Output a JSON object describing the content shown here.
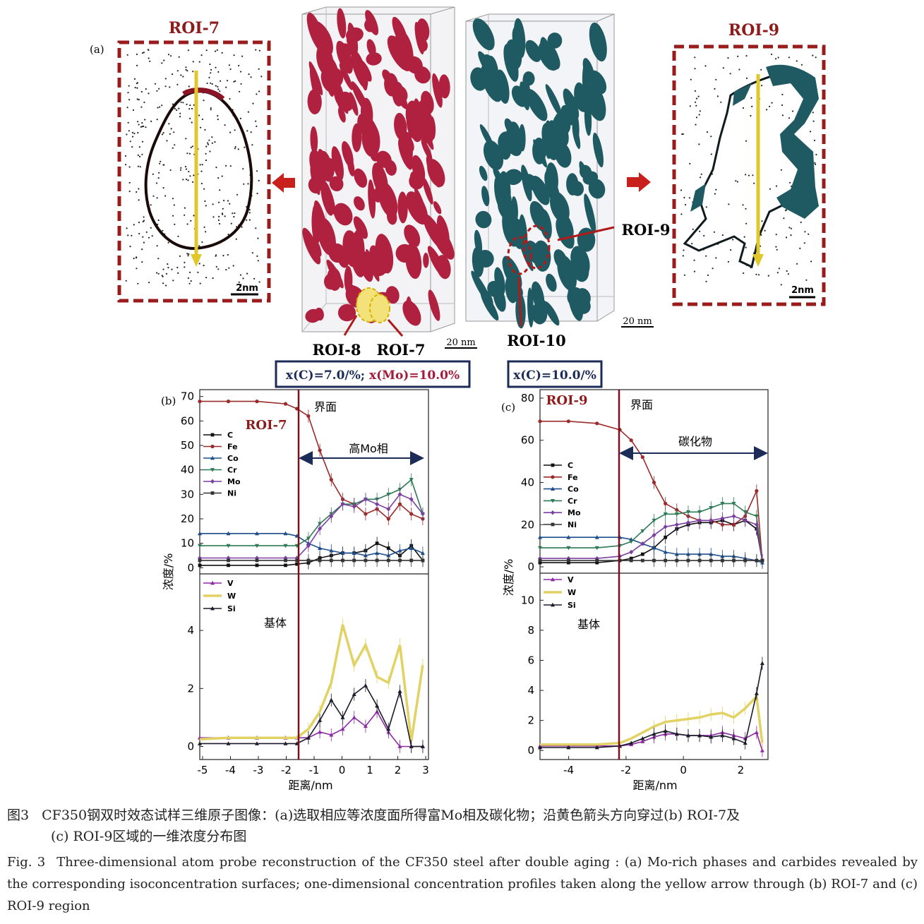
{
  "panel_a": {
    "label": "(a)",
    "roi7_title": "ROI-7",
    "roi9_title": "ROI-9",
    "scale_2nm_left": "2nm",
    "scale_2nm_right": "2nm",
    "scale_20nm_left": "20 nm",
    "scale_20nm_right": "20 nm",
    "roi8_label": "ROI-8",
    "roi7_label": "ROI-7",
    "roi10_label": "ROI-10",
    "roi9_label": "ROI-9",
    "iso_left_c": "x(C)=7.0/%; ",
    "iso_left_mo": "x(Mo)=10.0%",
    "iso_right": "x(C)=10.0/%",
    "colors": {
      "mo_phase": "#b0203f",
      "carbide": "#1f5a62",
      "box_red": "#9a1b1b",
      "arrow_yellow": "#e0c72a"
    }
  },
  "panel_b": {
    "label": "(b)",
    "roi": "ROI-7",
    "interface_label": "界面",
    "region_label": "高Mo相",
    "matrix_label": "基体",
    "ylabel": "浓度/%",
    "xlabel": "距离/nm",
    "upper_yticks": [
      "70",
      "60",
      "50",
      "40",
      "30",
      "20",
      "10",
      "0"
    ],
    "lower_yticks": [
      "4",
      "2",
      "0"
    ],
    "xticks": [
      "-5",
      "-4",
      "-3",
      "-2",
      "-1",
      "0",
      "1",
      "2",
      "3"
    ],
    "legend_upper": [
      "C",
      "Fe",
      "Co",
      "Cr",
      "Mo",
      "Ni"
    ],
    "legend_lower": [
      "V",
      "W",
      "Si"
    ]
  },
  "panel_c": {
    "label": "(c)",
    "roi": "ROI-9",
    "interface_label": "界面",
    "region_label": "碳化物",
    "matrix_label": "基体",
    "ylabel": "浓度/%",
    "xlabel": "距离/nm",
    "upper_yticks": [
      "80",
      "60",
      "40",
      "20",
      "0"
    ],
    "lower_yticks": [
      "10",
      "8",
      "6",
      "4",
      "2",
      "0"
    ],
    "xticks": [
      "-4",
      "-2",
      "0",
      "2"
    ],
    "legend_upper": [
      "C",
      "Fe",
      "Co",
      "Cr",
      "Mo",
      "Ni"
    ],
    "legend_lower": [
      "V",
      "W",
      "Si"
    ]
  },
  "chart_data": [
    {
      "type": "line",
      "title": "ROI-7",
      "xlabel": "距离/nm",
      "ylabel": "浓度/%",
      "xlim": [
        -5,
        3
      ],
      "ylim": [
        0,
        70
      ],
      "x": [
        -5,
        -4,
        -3,
        -2,
        -1.6,
        -1.2,
        -0.8,
        -0.4,
        0,
        0.4,
        0.8,
        1.2,
        1.6,
        2,
        2.4,
        2.8
      ],
      "series": [
        {
          "name": "C",
          "values": [
            1,
            1,
            1,
            1,
            1.5,
            2,
            4,
            5,
            6,
            6,
            7,
            10,
            8,
            5,
            9,
            3
          ]
        },
        {
          "name": "Fe",
          "values": [
            68,
            68,
            68,
            67,
            65,
            62,
            48,
            36,
            28,
            26,
            22,
            24,
            20,
            26,
            22,
            20
          ]
        },
        {
          "name": "Co",
          "values": [
            14,
            14,
            14,
            14,
            13,
            10,
            8,
            7,
            6,
            6,
            5,
            6,
            5,
            7,
            8,
            6
          ]
        },
        {
          "name": "Cr",
          "values": [
            9,
            9,
            9,
            9,
            9,
            12,
            18,
            22,
            26,
            26,
            28,
            28,
            30,
            32,
            36,
            22
          ]
        },
        {
          "name": "Mo",
          "values": [
            4,
            4,
            4,
            4,
            4,
            9,
            16,
            21,
            26,
            25,
            28,
            26,
            24,
            30,
            28,
            22
          ]
        },
        {
          "name": "Ni",
          "values": [
            3,
            3,
            3,
            3,
            3,
            3,
            3,
            3,
            3,
            3,
            3,
            3,
            3,
            3,
            3,
            3
          ]
        }
      ]
    },
    {
      "type": "line",
      "title": "",
      "xlabel": "距离/nm",
      "ylabel": "浓度/%",
      "xlim": [
        -5,
        3
      ],
      "ylim": [
        0,
        5.5
      ],
      "x": [
        -5,
        -4,
        -3,
        -2,
        -1.6,
        -1.2,
        -0.8,
        -0.4,
        0,
        0.4,
        0.8,
        1.2,
        1.6,
        2,
        2.4,
        2.8
      ],
      "series": [
        {
          "name": "V",
          "values": [
            0.3,
            0.3,
            0.3,
            0.3,
            0.3,
            0.3,
            0.5,
            0.4,
            0.6,
            1,
            0.7,
            1.2,
            0.5,
            0,
            0,
            0
          ]
        },
        {
          "name": "W",
          "values": [
            0.25,
            0.3,
            0.3,
            0.3,
            0.3,
            0.6,
            1.2,
            2.2,
            4.2,
            2.8,
            3.5,
            2.4,
            2.2,
            3.5,
            0.2,
            2.8
          ]
        },
        {
          "name": "Si",
          "values": [
            0.1,
            0.1,
            0.1,
            0.1,
            0.1,
            0.3,
            0.9,
            1.6,
            1,
            1.8,
            2.1,
            1.4,
            0.6,
            1.9,
            0,
            0
          ]
        }
      ]
    },
    {
      "type": "line",
      "title": "ROI-9",
      "xlabel": "距离/nm",
      "ylabel": "浓度/%",
      "xlim": [
        -5,
        3
      ],
      "ylim": [
        0,
        80
      ],
      "x": [
        -5,
        -4,
        -3,
        -2.2,
        -1.8,
        -1.4,
        -1,
        -0.6,
        -0.2,
        0.2,
        0.6,
        1,
        1.4,
        1.8,
        2.2,
        2.6,
        2.8
      ],
      "series": [
        {
          "name": "C",
          "values": [
            2,
            2,
            2,
            3,
            4,
            6,
            9,
            14,
            18,
            20,
            21,
            21,
            22,
            20,
            22,
            18,
            3
          ]
        },
        {
          "name": "Fe",
          "values": [
            69,
            69,
            68,
            65,
            60,
            52,
            40,
            30,
            27,
            24,
            22,
            22,
            20,
            20,
            24,
            36,
            3
          ]
        },
        {
          "name": "Co",
          "values": [
            14,
            14,
            14,
            14,
            13,
            11,
            9,
            7,
            6,
            6,
            6,
            6,
            5,
            5,
            4,
            3,
            2
          ]
        },
        {
          "name": "Cr",
          "values": [
            9,
            9,
            9,
            10,
            12,
            17,
            22,
            25,
            25,
            26,
            26,
            28,
            30,
            30,
            26,
            24,
            3
          ]
        },
        {
          "name": "Mo",
          "values": [
            4,
            4,
            4,
            5,
            7,
            11,
            15,
            19,
            20,
            21,
            22,
            22,
            23,
            24,
            22,
            20,
            3
          ]
        },
        {
          "name": "Ni",
          "values": [
            3,
            3,
            3,
            3,
            3,
            3,
            3,
            3,
            3,
            3,
            3,
            3,
            3,
            3,
            3,
            3,
            3
          ]
        }
      ]
    },
    {
      "type": "line",
      "title": "",
      "xlabel": "距离/nm",
      "ylabel": "浓度/%",
      "xlim": [
        -5,
        3
      ],
      "ylim": [
        0,
        11.5
      ],
      "x": [
        -5,
        -4,
        -3,
        -2.2,
        -1.8,
        -1.4,
        -1,
        -0.6,
        -0.2,
        0.2,
        0.6,
        1,
        1.4,
        1.8,
        2.2,
        2.6,
        2.8
      ],
      "series": [
        {
          "name": "V",
          "values": [
            0.3,
            0.3,
            0.3,
            0.3,
            0.4,
            0.6,
            0.9,
            1.1,
            1.1,
            1,
            1,
            1,
            1.2,
            1,
            0.8,
            1.2,
            0
          ]
        },
        {
          "name": "W",
          "values": [
            0.4,
            0.4,
            0.4,
            0.5,
            0.8,
            1.2,
            1.6,
            1.9,
            2,
            2.1,
            2.2,
            2.4,
            2.5,
            2.2,
            2.8,
            3.6,
            0.5
          ]
        },
        {
          "name": "Si",
          "values": [
            0.2,
            0.2,
            0.2,
            0.3,
            0.5,
            0.8,
            1.1,
            1.3,
            1.1,
            1,
            1,
            0.9,
            1,
            0.8,
            0.5,
            3.8,
            5.8
          ]
        }
      ]
    }
  ],
  "caption": {
    "cn_fig": "图3",
    "cn_line1": "CF350钢双时效态试样三维原子图像：(a)选取相应等浓度面所得富Mo相及碳化物；沿黄色箭头方向穿过(b) ROI-7及",
    "cn_line2": "(c) ROI-9区域的一维浓度分布图",
    "en_fig": "Fig. 3",
    "en_text": "Three-dimensional atom probe reconstruction of the CF350 steel after double aging : (a) Mo-rich phases and carbides revealed by the corresponding isoconcentration surfaces; one-dimensional concentration profiles taken along the yellow arrow through (b) ROI-7 and (c) ROI-9 region"
  }
}
